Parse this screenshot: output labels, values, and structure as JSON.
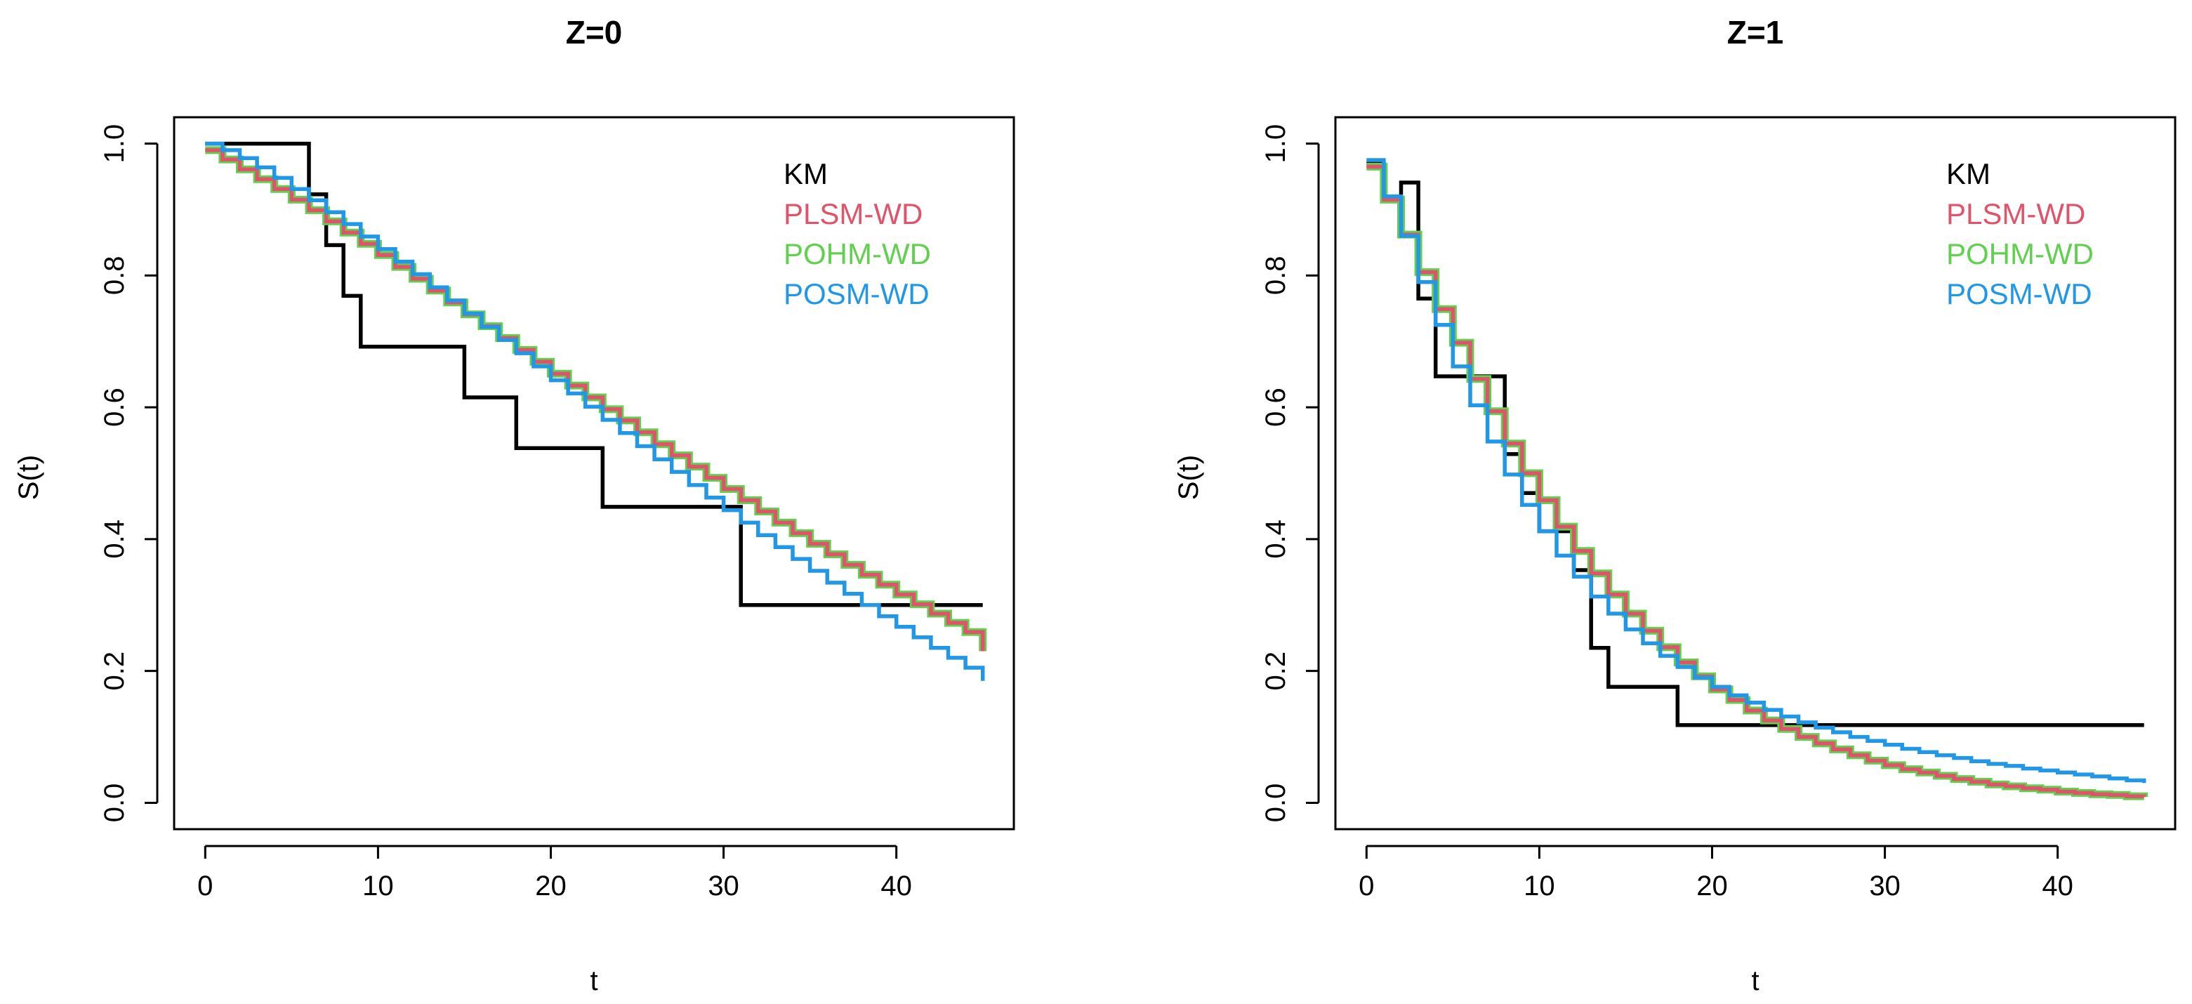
{
  "figure": {
    "colors": {
      "KM": "#000000",
      "PLSM-WD": "#DF536B",
      "POHM-WD": "#61D04F",
      "POSM-WD": "#2297E6"
    }
  },
  "chart_data": [
    {
      "type": "line",
      "title": "Z=0",
      "xlabel": "t",
      "ylabel": "S(t)",
      "xlim": [
        0,
        45
      ],
      "ylim": [
        0.0,
        1.0
      ],
      "xticks": [
        0,
        10,
        20,
        30,
        40
      ],
      "yticks": [
        0.0,
        0.2,
        0.4,
        0.6,
        0.8,
        1.0
      ],
      "xtick_labels": [
        "0",
        "10",
        "20",
        "30",
        "40"
      ],
      "ytick_labels": [
        "0.0",
        "0.2",
        "0.4",
        "0.6",
        "0.8",
        "1.0"
      ],
      "legend_position": "top-right",
      "legend": [
        "KM",
        "PLSM-WD",
        "POHM-WD",
        "POSM-WD"
      ],
      "series": [
        {
          "name": "KM",
          "step": true,
          "x": [
            0,
            6,
            7,
            8,
            9,
            15,
            18,
            23,
            31,
            45
          ],
          "y": [
            1.0,
            0.923,
            0.846,
            0.769,
            0.692,
            0.615,
            0.538,
            0.449,
            0.3,
            0.3
          ]
        },
        {
          "name": "POHM-WD",
          "step": true,
          "x": [
            0,
            1,
            2,
            3,
            4,
            5,
            6,
            7,
            8,
            9,
            10,
            11,
            12,
            13,
            14,
            15,
            16,
            17,
            18,
            19,
            20,
            21,
            22,
            23,
            24,
            25,
            26,
            27,
            28,
            29,
            30,
            31,
            32,
            33,
            34,
            35,
            36,
            37,
            38,
            39,
            40,
            41,
            42,
            43,
            44,
            45
          ],
          "y": [
            0.99,
            0.976,
            0.961,
            0.946,
            0.931,
            0.915,
            0.899,
            0.882,
            0.865,
            0.848,
            0.831,
            0.813,
            0.795,
            0.777,
            0.759,
            0.741,
            0.723,
            0.705,
            0.687,
            0.669,
            0.651,
            0.633,
            0.615,
            0.597,
            0.58,
            0.562,
            0.544,
            0.527,
            0.51,
            0.493,
            0.476,
            0.459,
            0.442,
            0.425,
            0.409,
            0.393,
            0.377,
            0.361,
            0.346,
            0.331,
            0.316,
            0.301,
            0.287,
            0.273,
            0.259,
            0.23
          ]
        },
        {
          "name": "PLSM-WD",
          "step": true,
          "x": [
            0,
            1,
            2,
            3,
            4,
            5,
            6,
            7,
            8,
            9,
            10,
            11,
            12,
            13,
            14,
            15,
            16,
            17,
            18,
            19,
            20,
            21,
            22,
            23,
            24,
            25,
            26,
            27,
            28,
            29,
            30,
            31,
            32,
            33,
            34,
            35,
            36,
            37,
            38,
            39,
            40,
            41,
            42,
            43,
            44,
            45
          ],
          "y": [
            0.99,
            0.976,
            0.961,
            0.946,
            0.931,
            0.915,
            0.899,
            0.882,
            0.865,
            0.848,
            0.831,
            0.813,
            0.795,
            0.777,
            0.759,
            0.741,
            0.723,
            0.705,
            0.687,
            0.669,
            0.651,
            0.633,
            0.615,
            0.597,
            0.58,
            0.562,
            0.544,
            0.527,
            0.51,
            0.493,
            0.476,
            0.459,
            0.442,
            0.425,
            0.409,
            0.393,
            0.377,
            0.361,
            0.346,
            0.331,
            0.316,
            0.301,
            0.287,
            0.273,
            0.259,
            0.23
          ]
        },
        {
          "name": "POSM-WD",
          "step": true,
          "x": [
            0,
            1,
            2,
            3,
            4,
            5,
            6,
            7,
            8,
            9,
            10,
            11,
            12,
            13,
            14,
            15,
            16,
            17,
            18,
            19,
            20,
            21,
            22,
            23,
            24,
            25,
            26,
            27,
            28,
            29,
            30,
            31,
            32,
            33,
            34,
            35,
            36,
            37,
            38,
            39,
            40,
            41,
            42,
            43,
            44,
            45
          ],
          "y": [
            1.0,
            0.99,
            0.978,
            0.964,
            0.948,
            0.931,
            0.914,
            0.896,
            0.878,
            0.859,
            0.84,
            0.821,
            0.802,
            0.782,
            0.762,
            0.742,
            0.722,
            0.702,
            0.682,
            0.662,
            0.641,
            0.621,
            0.601,
            0.581,
            0.561,
            0.541,
            0.521,
            0.502,
            0.482,
            0.463,
            0.444,
            0.425,
            0.406,
            0.388,
            0.37,
            0.352,
            0.334,
            0.317,
            0.3,
            0.283,
            0.267,
            0.251,
            0.235,
            0.22,
            0.205,
            0.185
          ]
        }
      ]
    },
    {
      "type": "line",
      "title": "Z=1",
      "xlabel": "t",
      "ylabel": "S(t)",
      "xlim": [
        0,
        45
      ],
      "ylim": [
        0.0,
        1.0
      ],
      "xticks": [
        0,
        10,
        20,
        30,
        40
      ],
      "yticks": [
        0.0,
        0.2,
        0.4,
        0.6,
        0.8,
        1.0
      ],
      "xtick_labels": [
        "0",
        "10",
        "20",
        "30",
        "40"
      ],
      "ytick_labels": [
        "0.0",
        "0.2",
        "0.4",
        "0.6",
        "0.8",
        "1.0"
      ],
      "legend_position": "top-right",
      "legend": [
        "KM",
        "PLSM-WD",
        "POHM-WD",
        "POSM-WD"
      ],
      "series": [
        {
          "name": "KM",
          "step": true,
          "x": [
            0,
            1,
            2,
            3,
            4,
            8,
            9,
            10,
            12,
            13,
            14,
            18,
            45
          ],
          "y": [
            0.97,
            0.915,
            0.941,
            0.765,
            0.647,
            0.529,
            0.47,
            0.412,
            0.353,
            0.235,
            0.176,
            0.118,
            0.118
          ]
        },
        {
          "name": "POHM-WD",
          "step": true,
          "x": [
            0,
            1,
            2,
            3,
            4,
            5,
            6,
            7,
            8,
            9,
            10,
            11,
            12,
            13,
            14,
            15,
            16,
            17,
            18,
            19,
            20,
            21,
            22,
            23,
            24,
            25,
            26,
            27,
            28,
            29,
            30,
            31,
            32,
            33,
            34,
            35,
            36,
            37,
            38,
            39,
            40,
            41,
            42,
            43,
            44,
            45
          ],
          "y": [
            0.965,
            0.915,
            0.862,
            0.805,
            0.749,
            0.698,
            0.643,
            0.594,
            0.545,
            0.5,
            0.459,
            0.419,
            0.382,
            0.348,
            0.316,
            0.287,
            0.261,
            0.236,
            0.213,
            0.192,
            0.172,
            0.156,
            0.14,
            0.125,
            0.112,
            0.1,
            0.09,
            0.081,
            0.072,
            0.064,
            0.057,
            0.051,
            0.046,
            0.041,
            0.036,
            0.032,
            0.028,
            0.025,
            0.022,
            0.02,
            0.017,
            0.015,
            0.013,
            0.012,
            0.01,
            0.009
          ]
        },
        {
          "name": "PLSM-WD",
          "step": true,
          "x": [
            0,
            1,
            2,
            3,
            4,
            5,
            6,
            7,
            8,
            9,
            10,
            11,
            12,
            13,
            14,
            15,
            16,
            17,
            18,
            19,
            20,
            21,
            22,
            23,
            24,
            25,
            26,
            27,
            28,
            29,
            30,
            31,
            32,
            33,
            34,
            35,
            36,
            37,
            38,
            39,
            40,
            41,
            42,
            43,
            44,
            45
          ],
          "y": [
            0.965,
            0.915,
            0.862,
            0.805,
            0.749,
            0.698,
            0.643,
            0.594,
            0.545,
            0.5,
            0.459,
            0.419,
            0.382,
            0.348,
            0.316,
            0.287,
            0.261,
            0.236,
            0.213,
            0.192,
            0.172,
            0.156,
            0.14,
            0.125,
            0.112,
            0.1,
            0.09,
            0.081,
            0.072,
            0.064,
            0.057,
            0.051,
            0.046,
            0.041,
            0.036,
            0.032,
            0.028,
            0.025,
            0.022,
            0.02,
            0.017,
            0.015,
            0.013,
            0.012,
            0.01,
            0.009
          ]
        },
        {
          "name": "POSM-WD",
          "step": true,
          "x": [
            0,
            1,
            2,
            3,
            4,
            5,
            6,
            7,
            8,
            9,
            10,
            11,
            12,
            13,
            14,
            15,
            16,
            17,
            18,
            19,
            20,
            21,
            22,
            23,
            24,
            25,
            26,
            27,
            28,
            29,
            30,
            31,
            32,
            33,
            34,
            35,
            36,
            37,
            38,
            39,
            40,
            41,
            42,
            43,
            44,
            45
          ],
          "y": [
            0.975,
            0.92,
            0.86,
            0.79,
            0.725,
            0.662,
            0.603,
            0.548,
            0.498,
            0.452,
            0.412,
            0.375,
            0.343,
            0.313,
            0.287,
            0.263,
            0.242,
            0.223,
            0.206,
            0.19,
            0.176,
            0.163,
            0.152,
            0.141,
            0.131,
            0.122,
            0.114,
            0.107,
            0.1,
            0.094,
            0.088,
            0.082,
            0.077,
            0.072,
            0.068,
            0.063,
            0.059,
            0.056,
            0.052,
            0.049,
            0.046,
            0.043,
            0.04,
            0.037,
            0.034,
            0.03
          ]
        }
      ]
    }
  ]
}
